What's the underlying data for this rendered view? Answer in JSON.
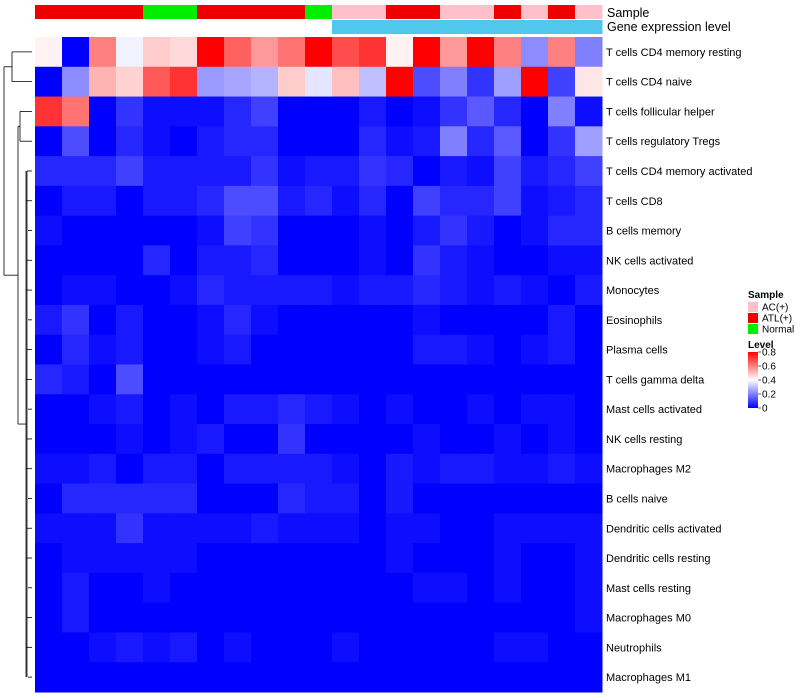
{
  "chart_data": {
    "type": "heatmap",
    "title": "",
    "annotation_tracks": [
      {
        "name": "Sample",
        "values": [
          "ATL(+)",
          "ATL(+)",
          "ATL(+)",
          "ATL(+)",
          "Normal",
          "Normal",
          "ATL(+)",
          "ATL(+)",
          "ATL(+)",
          "ATL(+)",
          "Normal",
          "AC(+)",
          "AC(+)",
          "ATL(+)",
          "ATL(+)",
          "AC(+)",
          "AC(+)",
          "ATL(+)",
          "AC(+)",
          "ATL(+)",
          "AC(+)"
        ]
      },
      {
        "name": "Gene expression level",
        "values": [
          "low",
          "low",
          "low",
          "low",
          "low",
          "low",
          "low",
          "low",
          "low",
          "low",
          "low",
          "high",
          "high",
          "high",
          "high",
          "high",
          "high",
          "high",
          "high",
          "high",
          "high"
        ]
      }
    ],
    "rows": [
      "T cells CD4 memory resting",
      "T cells CD4 naive",
      "T cells follicular helper",
      "T cells regulatory  Tregs",
      "T cells CD4 memory activated",
      "T cells CD8",
      "B cells memory",
      "NK cells activated",
      "Monocytes",
      "Eosinophils",
      "Plasma cells",
      "T cells gamma delta",
      "Mast cells activated",
      "NK cells resting",
      "Macrophages M2",
      "B cells naive",
      "Dendritic cells activated",
      "Dendritic cells resting",
      "Mast cells resting",
      "Macrophages M0",
      "Neutrophils",
      "Macrophages M1"
    ],
    "values": [
      [
        0.42,
        0.0,
        0.6,
        0.38,
        0.48,
        0.46,
        0.8,
        0.65,
        0.56,
        0.62,
        0.8,
        0.68,
        0.72,
        0.42,
        0.8,
        0.56,
        0.8,
        0.6,
        0.22,
        0.6,
        0.2
      ],
      [
        0.0,
        0.22,
        0.52,
        0.47,
        0.66,
        0.72,
        0.24,
        0.26,
        0.28,
        0.48,
        0.36,
        0.5,
        0.3,
        0.8,
        0.12,
        0.2,
        0.08,
        0.25,
        0.8,
        0.1,
        0.44
      ],
      [
        0.72,
        0.62,
        0.0,
        0.08,
        0.02,
        0.02,
        0.02,
        0.06,
        0.1,
        0.0,
        0.0,
        0.0,
        0.04,
        0.0,
        0.02,
        0.08,
        0.14,
        0.06,
        0.0,
        0.2,
        0.02
      ],
      [
        0.0,
        0.12,
        0.0,
        0.06,
        0.02,
        0.0,
        0.04,
        0.06,
        0.06,
        0.0,
        0.0,
        0.0,
        0.06,
        0.02,
        0.04,
        0.2,
        0.06,
        0.14,
        0.0,
        0.08,
        0.25
      ],
      [
        0.06,
        0.06,
        0.06,
        0.1,
        0.04,
        0.04,
        0.04,
        0.04,
        0.08,
        0.02,
        0.04,
        0.04,
        0.08,
        0.06,
        0.0,
        0.04,
        0.02,
        0.1,
        0.04,
        0.06,
        0.1
      ],
      [
        0.0,
        0.04,
        0.04,
        0.0,
        0.04,
        0.04,
        0.06,
        0.12,
        0.12,
        0.04,
        0.06,
        0.02,
        0.06,
        0.0,
        0.1,
        0.06,
        0.06,
        0.1,
        0.02,
        0.04,
        0.06
      ],
      [
        0.02,
        0.0,
        0.0,
        0.0,
        0.0,
        0.0,
        0.02,
        0.1,
        0.08,
        0.0,
        0.0,
        0.0,
        0.02,
        0.0,
        0.04,
        0.08,
        0.04,
        0.0,
        0.02,
        0.06,
        0.06
      ],
      [
        0.0,
        0.0,
        0.0,
        0.0,
        0.06,
        0.0,
        0.04,
        0.04,
        0.06,
        0.0,
        0.0,
        0.0,
        0.02,
        0.0,
        0.08,
        0.04,
        0.02,
        0.0,
        0.0,
        0.02,
        0.02
      ],
      [
        0.0,
        0.02,
        0.02,
        0.0,
        0.0,
        0.02,
        0.06,
        0.04,
        0.04,
        0.04,
        0.04,
        0.02,
        0.04,
        0.04,
        0.06,
        0.04,
        0.02,
        0.04,
        0.02,
        0.0,
        0.04
      ],
      [
        0.04,
        0.08,
        0.0,
        0.04,
        0.0,
        0.0,
        0.02,
        0.06,
        0.02,
        0.0,
        0.0,
        0.0,
        0.0,
        0.0,
        0.02,
        0.0,
        0.0,
        0.0,
        0.0,
        0.04,
        0.0
      ],
      [
        0.0,
        0.06,
        0.02,
        0.04,
        0.0,
        0.0,
        0.02,
        0.04,
        0.0,
        0.0,
        0.0,
        0.0,
        0.0,
        0.0,
        0.04,
        0.04,
        0.02,
        0.0,
        0.02,
        0.04,
        0.0
      ],
      [
        0.06,
        0.04,
        0.0,
        0.12,
        0.0,
        0.0,
        0.0,
        0.0,
        0.0,
        0.0,
        0.0,
        0.0,
        0.0,
        0.0,
        0.0,
        0.0,
        0.0,
        0.0,
        0.0,
        0.0,
        0.0
      ],
      [
        0.0,
        0.0,
        0.02,
        0.04,
        0.0,
        0.02,
        0.0,
        0.04,
        0.04,
        0.06,
        0.04,
        0.02,
        0.0,
        0.02,
        0.0,
        0.0,
        0.02,
        0.0,
        0.02,
        0.02,
        0.0
      ],
      [
        0.0,
        0.0,
        0.0,
        0.02,
        0.0,
        0.02,
        0.04,
        0.0,
        0.0,
        0.08,
        0.0,
        0.0,
        0.0,
        0.0,
        0.02,
        0.0,
        0.0,
        0.02,
        0.0,
        0.02,
        0.0
      ],
      [
        0.02,
        0.02,
        0.04,
        0.0,
        0.04,
        0.04,
        0.0,
        0.04,
        0.04,
        0.04,
        0.04,
        0.02,
        0.0,
        0.04,
        0.02,
        0.04,
        0.04,
        0.02,
        0.02,
        0.04,
        0.02
      ],
      [
        0.0,
        0.06,
        0.06,
        0.06,
        0.06,
        0.06,
        0.0,
        0.0,
        0.0,
        0.06,
        0.04,
        0.04,
        0.0,
        0.04,
        0.0,
        0.0,
        0.0,
        0.0,
        0.0,
        0.0,
        0.0
      ],
      [
        0.02,
        0.02,
        0.02,
        0.08,
        0.02,
        0.02,
        0.02,
        0.02,
        0.04,
        0.02,
        0.02,
        0.02,
        0.0,
        0.02,
        0.02,
        0.0,
        0.0,
        0.02,
        0.02,
        0.02,
        0.02
      ],
      [
        0.0,
        0.02,
        0.02,
        0.02,
        0.02,
        0.02,
        0.0,
        0.0,
        0.0,
        0.0,
        0.0,
        0.0,
        0.0,
        0.02,
        0.0,
        0.0,
        0.0,
        0.02,
        0.0,
        0.0,
        0.02
      ],
      [
        0.0,
        0.04,
        0.0,
        0.0,
        0.02,
        0.0,
        0.0,
        0.0,
        0.0,
        0.0,
        0.0,
        0.0,
        0.0,
        0.0,
        0.02,
        0.02,
        0.0,
        0.02,
        0.0,
        0.0,
        0.02
      ],
      [
        0.0,
        0.04,
        0.0,
        0.0,
        0.0,
        0.0,
        0.0,
        0.0,
        0.0,
        0.0,
        0.0,
        0.0,
        0.0,
        0.0,
        0.0,
        0.0,
        0.0,
        0.0,
        0.0,
        0.0,
        0.02
      ],
      [
        0.0,
        0.0,
        0.02,
        0.04,
        0.02,
        0.04,
        0.0,
        0.02,
        0.0,
        0.0,
        0.0,
        0.02,
        0.0,
        0.0,
        0.0,
        0.0,
        0.0,
        0.02,
        0.02,
        0.0,
        0.0
      ],
      [
        0.0,
        0.0,
        0.0,
        0.0,
        0.0,
        0.0,
        0.0,
        0.0,
        0.0,
        0.0,
        0.0,
        0.0,
        0.0,
        0.0,
        0.0,
        0.0,
        0.0,
        0.0,
        0.0,
        0.0,
        0.0
      ]
    ],
    "color_scale": {
      "min": 0,
      "max": 0.8,
      "low": "#0000FF",
      "mid": "#FFFFFF",
      "mid_value": 0.4,
      "high": "#FF0000"
    },
    "legend": {
      "sample": {
        "title": "Sample",
        "entries": [
          {
            "label": "AC(+)",
            "color": "#FFC0CB"
          },
          {
            "label": "ATL(+)",
            "color": "#EE0000"
          },
          {
            "label": "Normal",
            "color": "#00EE00"
          }
        ]
      },
      "level": {
        "title": "Level",
        "ticks": [
          "0.8",
          "0.6",
          "0.4",
          "0.2",
          "0"
        ],
        "tick_values": [
          0.8,
          0.6,
          0.4,
          0.2,
          0
        ]
      },
      "placement": "right"
    },
    "gene_expression_colors": {
      "low": "#FFFFFF",
      "high": "#50C8EE"
    }
  }
}
